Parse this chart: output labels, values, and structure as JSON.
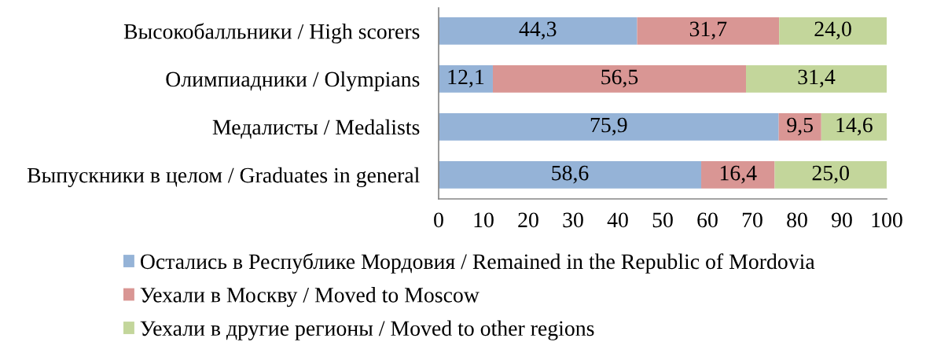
{
  "chart_data": {
    "type": "bar",
    "orientation": "horizontal",
    "stacked": true,
    "categories": [
      "Высокобалльники / High scorers",
      "Олимпиадники / Olympians",
      "Медалисты / Medalists",
      "Выпускники в целом / Graduates in general"
    ],
    "series": [
      {
        "name": "Остались в Республике Мордовия / Remained in the Republic of Mordovia",
        "color": "#95b3d7",
        "values": [
          44.3,
          12.1,
          75.9,
          58.6
        ],
        "value_labels": [
          "44,3",
          "12,1",
          "75,9",
          "58,6"
        ]
      },
      {
        "name": "Уехали в Москву / Moved to Moscow",
        "color": "#d99694",
        "values": [
          31.7,
          56.5,
          9.5,
          16.4
        ],
        "value_labels": [
          "31,7",
          "56,5",
          "9,5",
          "16,4"
        ]
      },
      {
        "name": "Уехали в другие регионы / Moved to other regions",
        "color": "#c3d69b",
        "values": [
          24.0,
          31.4,
          14.6,
          25.0
        ],
        "value_labels": [
          "24,0",
          "31,4",
          "14,6",
          "25,0"
        ]
      }
    ],
    "xlim": [
      0,
      100
    ],
    "xticks": [
      0,
      10,
      20,
      30,
      40,
      50,
      60,
      70,
      80,
      90,
      100
    ],
    "grid": false,
    "legend": "bottom"
  }
}
